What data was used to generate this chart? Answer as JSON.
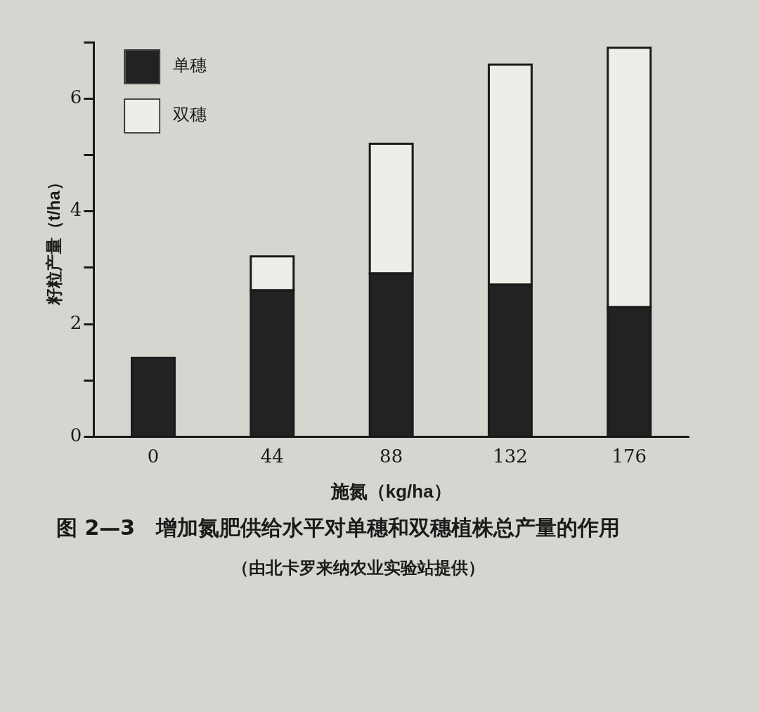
{
  "chart_data": {
    "type": "bar",
    "stacked": true,
    "title": "图 2—3　增加氮肥供给水平对单穗和双穗植株总产量的作用",
    "xlabel": "施氮（kg/ha）",
    "ylabel": "籽粒产量（t/ha）",
    "categories": [
      "0",
      "44",
      "88",
      "132",
      "176"
    ],
    "series": [
      {
        "name": "单穗",
        "color": "#222222",
        "values": [
          1.4,
          2.6,
          2.9,
          2.7,
          2.3
        ]
      },
      {
        "name": "双穗",
        "color": "#eeede8",
        "values": [
          0,
          0.6,
          2.3,
          3.9,
          4.6
        ]
      }
    ],
    "ylim": [
      0,
      7
    ],
    "yticks": [
      0,
      {
        "value": 1,
        "label": null
      },
      2,
      {
        "value": 3,
        "label": null
      },
      4,
      {
        "value": 5,
        "label": null
      },
      6,
      {
        "value": 7,
        "label": null
      }
    ],
    "grid": false,
    "legend": "top left",
    "annotations": [
      "（由北卡罗来纳农业实验站提供）"
    ]
  }
}
